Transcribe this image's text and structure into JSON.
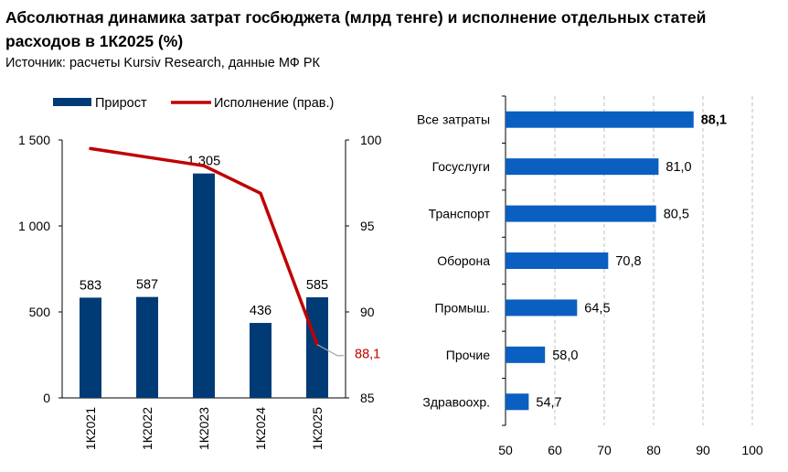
{
  "header": {
    "title": "Абсолютная динамика затрат госбюджета (млрд тенге) и исполнение отдельных статей расходов в 1К2025 (%)",
    "source": "Источник: расчеты Kursiv Research, данные МФ РК"
  },
  "colors": {
    "bar_dark": "#003b75",
    "line_red": "#c00000",
    "bar_blue": "#0b5fc1",
    "grid": "#bfbfbf",
    "label_red": "#c00000"
  },
  "chart_data": [
    {
      "type": "bar",
      "categories": [
        "1К2021",
        "1К2022",
        "1К2023",
        "1К2024",
        "1К2025"
      ],
      "series": [
        {
          "name": "Прирост",
          "values": [
            583,
            587,
            1305,
            436,
            585
          ],
          "labels": [
            "583",
            "587",
            "1 305",
            "436",
            "585"
          ]
        },
        {
          "name": "Исполнение (прав.)",
          "axis": "right",
          "type": "line",
          "values": [
            99.5,
            99.0,
            98.5,
            96.9,
            88.1
          ],
          "end_label": "88,1"
        }
      ],
      "ylim": [
        0,
        1500
      ],
      "yticks": [
        0,
        500,
        1000,
        1500
      ],
      "ytick_labels": [
        "0",
        "500",
        "1 000",
        "1 500"
      ],
      "y2lim": [
        85,
        100
      ],
      "y2ticks": [
        85,
        90,
        95,
        100
      ],
      "y2tick_labels": [
        "85",
        "90",
        "95",
        "100"
      ],
      "legend": "top"
    },
    {
      "type": "bar",
      "orientation": "horizontal",
      "categories": [
        "Все затраты",
        "Госуслуги",
        "Транспорт",
        "Оборона",
        "Промыш.",
        "Прочие",
        "Здравоохр."
      ],
      "values": [
        88.1,
        81.0,
        80.5,
        70.8,
        64.5,
        58.0,
        54.7
      ],
      "labels": [
        "88,1",
        "81,0",
        "80,5",
        "70,8",
        "64,5",
        "58,0",
        "54,7"
      ],
      "xlim": [
        50,
        100
      ],
      "xticks": [
        50,
        60,
        70,
        80,
        90,
        100
      ],
      "xtick_labels": [
        "50",
        "60",
        "70",
        "80",
        "90",
        "100"
      ],
      "grid": "vertical dashed"
    }
  ]
}
